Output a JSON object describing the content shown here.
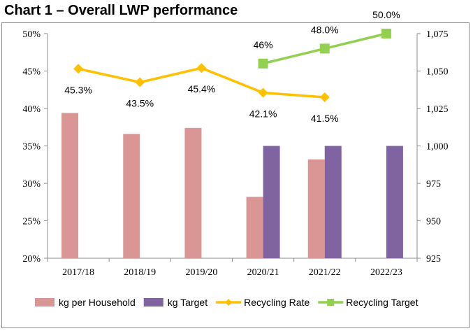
{
  "page": {
    "title": "Chart 1 – Overall LWP performance"
  },
  "chart_data": {
    "type": "bar",
    "categories": [
      "2017/18",
      "2018/19",
      "2019/20",
      "2020/21",
      "2021/22",
      "2022/23"
    ],
    "y_left": {
      "ticks": [
        "20%",
        "25%",
        "30%",
        "35%",
        "40%",
        "45%",
        "50%"
      ],
      "range": [
        20,
        50
      ]
    },
    "y_right": {
      "ticks": [
        "925",
        "950",
        "975",
        "1,000",
        "1,025",
        "1,050",
        "1,075"
      ],
      "range": [
        925,
        1075
      ]
    },
    "series": [
      {
        "name": "kg per Household",
        "kind": "bar",
        "axis": "right",
        "color": "#d99694",
        "values": [
          1022,
          1008,
          1012,
          966,
          991,
          null
        ]
      },
      {
        "name": "kg Target",
        "kind": "bar",
        "axis": "right",
        "color": "#8064a2",
        "values": [
          null,
          null,
          null,
          1000,
          1000,
          1000
        ]
      },
      {
        "name": "Recycling Rate",
        "kind": "line",
        "axis": "left",
        "color": "#ffc000",
        "marker": "diamond",
        "values": [
          45.3,
          43.5,
          45.4,
          42.1,
          41.5,
          null
        ],
        "labels": [
          "45.3%",
          "43.5%",
          "45.4%",
          "42.1%",
          "41.5%",
          ""
        ]
      },
      {
        "name": "Recycling Target",
        "kind": "line",
        "axis": "left",
        "color": "#92d050",
        "marker": "square",
        "values": [
          null,
          null,
          null,
          46,
          48,
          50
        ],
        "labels": [
          "",
          "",
          "",
          "46%",
          "48.0%",
          "50.0%"
        ]
      }
    ],
    "legend_position": "bottom",
    "grid": false
  }
}
